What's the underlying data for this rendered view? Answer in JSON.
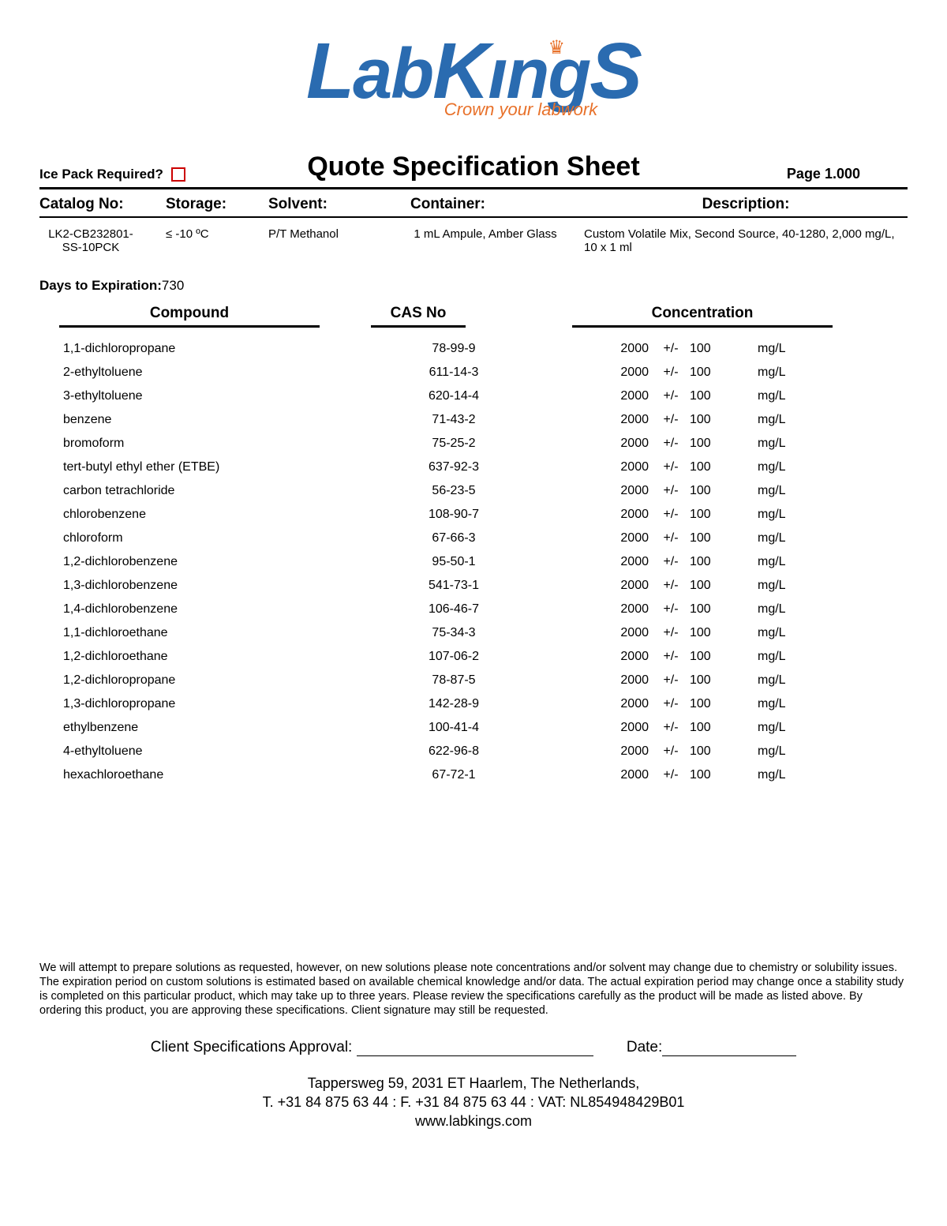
{
  "logo": {
    "text": "LabKings",
    "tagline": "Crown your labwork"
  },
  "ice_pack_label": "Ice Pack Required?",
  "title": "Quote Specification Sheet",
  "page_label": "Page 1.000",
  "spec": {
    "headers": {
      "catalog": "Catalog No:",
      "storage": "Storage:",
      "solvent": "Solvent:",
      "container": "Container:",
      "description": "Description:"
    },
    "values": {
      "catalog": "LK2-CB232801-SS-10PCK",
      "storage": "≤ -10 ºC",
      "solvent": "P/T Methanol",
      "container": "1 mL Ampule, Amber Glass",
      "description": "Custom Volatile Mix, Second Source, 40-1280, 2,000 mg/L, 10 x 1 ml"
    }
  },
  "days_label": "Days to Expiration:",
  "days_value": "730",
  "columns": {
    "compound": "Compound",
    "cas": "CAS No",
    "concentration": "Concentration"
  },
  "pm": "+/-",
  "rows": [
    {
      "name": "1,1-dichloropropane",
      "cas": "78-99-9",
      "val": "2000",
      "tol": "100",
      "unit": "mg/L"
    },
    {
      "name": "2-ethyltoluene",
      "cas": "611-14-3",
      "val": "2000",
      "tol": "100",
      "unit": "mg/L"
    },
    {
      "name": "3-ethyltoluene",
      "cas": "620-14-4",
      "val": "2000",
      "tol": "100",
      "unit": "mg/L"
    },
    {
      "name": "benzene",
      "cas": "71-43-2",
      "val": "2000",
      "tol": "100",
      "unit": "mg/L"
    },
    {
      "name": "bromoform",
      "cas": "75-25-2",
      "val": "2000",
      "tol": "100",
      "unit": "mg/L"
    },
    {
      "name": "tert-butyl ethyl ether (ETBE)",
      "cas": "637-92-3",
      "val": "2000",
      "tol": "100",
      "unit": "mg/L"
    },
    {
      "name": "carbon tetrachloride",
      "cas": "56-23-5",
      "val": "2000",
      "tol": "100",
      "unit": "mg/L"
    },
    {
      "name": "chlorobenzene",
      "cas": "108-90-7",
      "val": "2000",
      "tol": "100",
      "unit": "mg/L"
    },
    {
      "name": "chloroform",
      "cas": "67-66-3",
      "val": "2000",
      "tol": "100",
      "unit": "mg/L"
    },
    {
      "name": "1,2-dichlorobenzene",
      "cas": "95-50-1",
      "val": "2000",
      "tol": "100",
      "unit": "mg/L"
    },
    {
      "name": "1,3-dichlorobenzene",
      "cas": "541-73-1",
      "val": "2000",
      "tol": "100",
      "unit": "mg/L"
    },
    {
      "name": "1,4-dichlorobenzene",
      "cas": "106-46-7",
      "val": "2000",
      "tol": "100",
      "unit": "mg/L"
    },
    {
      "name": "1,1-dichloroethane",
      "cas": "75-34-3",
      "val": "2000",
      "tol": "100",
      "unit": "mg/L"
    },
    {
      "name": "1,2-dichloroethane",
      "cas": "107-06-2",
      "val": "2000",
      "tol": "100",
      "unit": "mg/L"
    },
    {
      "name": "1,2-dichloropropane",
      "cas": "78-87-5",
      "val": "2000",
      "tol": "100",
      "unit": "mg/L"
    },
    {
      "name": "1,3-dichloropropane",
      "cas": "142-28-9",
      "val": "2000",
      "tol": "100",
      "unit": "mg/L"
    },
    {
      "name": "ethylbenzene",
      "cas": "100-41-4",
      "val": "2000",
      "tol": "100",
      "unit": "mg/L"
    },
    {
      "name": "4-ethyltoluene",
      "cas": "622-96-8",
      "val": "2000",
      "tol": "100",
      "unit": "mg/L"
    },
    {
      "name": "hexachloroethane",
      "cas": "67-72-1",
      "val": "2000",
      "tol": "100",
      "unit": "mg/L"
    }
  ],
  "disclaimer": "We will attempt to prepare solutions as requested, however, on new solutions please note concentrations and/or solvent may change due to chemistry or solubility issues. The expiration period on custom solutions is estimated based on available chemical knowledge and/or data. The actual expiration period may change once a stability study is completed on this particular product, which may take up to three years. Please review the specifications carefully as the product will be made as listed above. By ordering this product, you are approving these specifications. Client signature may still be requested.",
  "approval": {
    "label": "Client Specifications Approval:",
    "date": "Date:"
  },
  "footer": {
    "line1": "Tappersweg 59, 2031 ET Haarlem, The Netherlands,",
    "line2": "T. +31 84 875 63 44 : F. +31 84 875 63 44 : VAT: NL854948429B01",
    "line3": "www.labkings.com"
  }
}
